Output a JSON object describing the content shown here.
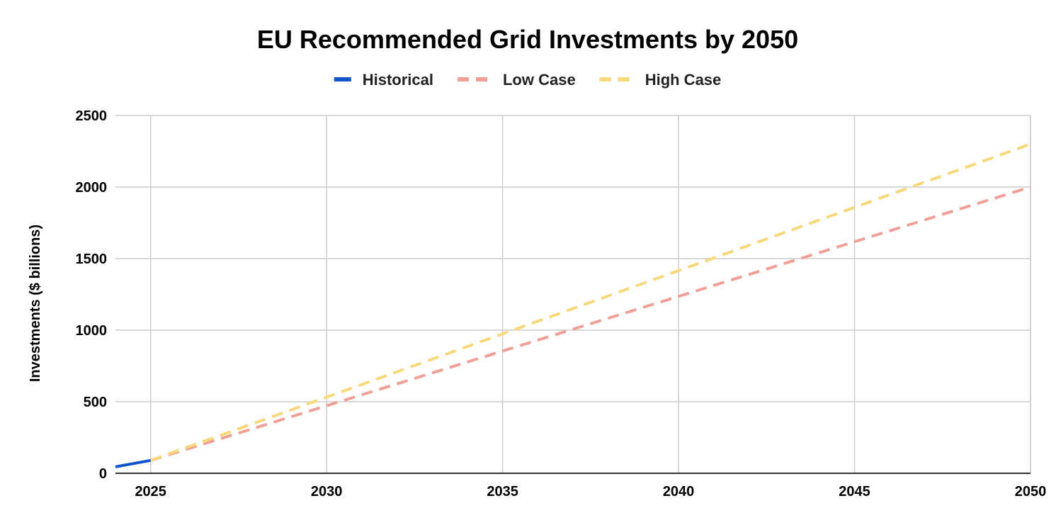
{
  "chart_data": {
    "type": "line",
    "title": "EU Recommended Grid Investments by 2050",
    "xlabel": "",
    "ylabel": "Investments ($ billions)",
    "xlim": [
      2024,
      2050
    ],
    "ylim": [
      0,
      2500
    ],
    "x_ticks": [
      "2025",
      "2030",
      "2035",
      "2040",
      "2045",
      "2050"
    ],
    "y_ticks": [
      "0",
      "500",
      "1000",
      "1500",
      "2000",
      "2500"
    ],
    "grid": true,
    "legend_position": "top-center",
    "series": [
      {
        "name": "Historical",
        "color": "#1155cc",
        "style": "solid",
        "x": [
          2024,
          2025
        ],
        "values": [
          45,
          90
        ]
      },
      {
        "name": "Low Case",
        "color": "#f0a097",
        "style": "dashed",
        "x": [
          2025,
          2050
        ],
        "values": [
          90,
          2000
        ]
      },
      {
        "name": "High Case",
        "color": "#f7d87a",
        "style": "dashed",
        "x": [
          2025,
          2050
        ],
        "values": [
          90,
          2300
        ]
      }
    ]
  }
}
